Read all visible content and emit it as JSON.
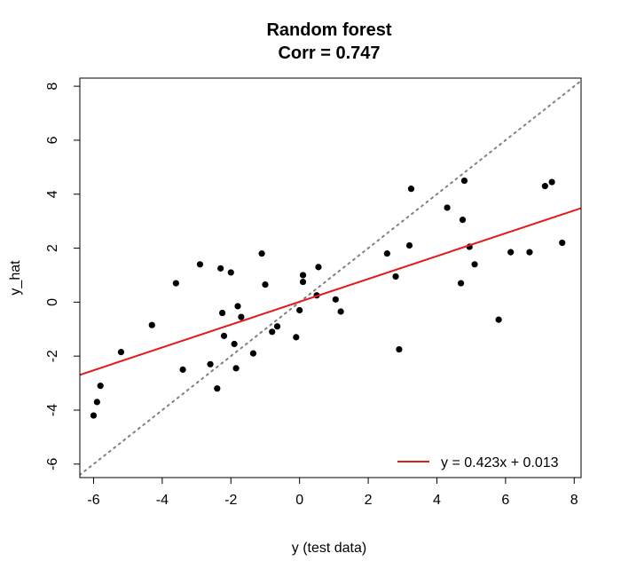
{
  "chart_data": {
    "type": "scatter",
    "title": "Random forest",
    "subtitle": "Corr = 0.747",
    "xlabel": "y (test data)",
    "ylabel": "y_hat",
    "xlim": [
      -6.4,
      8.2
    ],
    "ylim": [
      -6.5,
      8.3
    ],
    "xticks": [
      -6,
      -4,
      -2,
      0,
      2,
      4,
      6,
      8
    ],
    "yticks": [
      -6,
      -4,
      -2,
      0,
      2,
      4,
      6,
      8
    ],
    "xtick_labels": [
      "-6",
      "-4",
      "-2",
      "0",
      "2",
      "4",
      "6",
      "8"
    ],
    "ytick_labels": [
      "-6",
      "-4",
      "-2",
      "0",
      "2",
      "4",
      "6",
      "8"
    ],
    "grid": false,
    "legend_position": "bottom-right",
    "legend_label": "y = 0.423x + 0.013",
    "colors": {
      "points": "#000000",
      "fit_line": "#e31a1c",
      "identity_line": "#808080"
    },
    "fit_line": {
      "slope": 0.423,
      "intercept": 0.013
    },
    "identity_line": {
      "slope": 1,
      "intercept": 0
    },
    "points": [
      {
        "x": -6.0,
        "y": -4.2
      },
      {
        "x": -5.9,
        "y": -3.7
      },
      {
        "x": -5.8,
        "y": -3.1
      },
      {
        "x": -5.2,
        "y": -1.85
      },
      {
        "x": -4.3,
        "y": -0.85
      },
      {
        "x": -3.6,
        "y": 0.7
      },
      {
        "x": -3.4,
        "y": -2.5
      },
      {
        "x": -2.9,
        "y": 1.4
      },
      {
        "x": -2.6,
        "y": -2.3
      },
      {
        "x": -2.4,
        "y": -3.2
      },
      {
        "x": -2.3,
        "y": 1.25
      },
      {
        "x": -2.25,
        "y": -0.4
      },
      {
        "x": -2.2,
        "y": -1.25
      },
      {
        "x": -2.0,
        "y": 1.1
      },
      {
        "x": -1.9,
        "y": -1.55
      },
      {
        "x": -1.85,
        "y": -2.45
      },
      {
        "x": -1.8,
        "y": -0.15
      },
      {
        "x": -1.7,
        "y": -0.55
      },
      {
        "x": -1.35,
        "y": -1.9
      },
      {
        "x": -1.1,
        "y": 1.8
      },
      {
        "x": -1.0,
        "y": 0.65
      },
      {
        "x": -0.8,
        "y": -1.1
      },
      {
        "x": -0.65,
        "y": -0.9
      },
      {
        "x": -0.1,
        "y": -1.3
      },
      {
        "x": 0.0,
        "y": -0.3
      },
      {
        "x": 0.1,
        "y": 0.75
      },
      {
        "x": 0.1,
        "y": 1.0
      },
      {
        "x": 0.5,
        "y": 0.25
      },
      {
        "x": 0.55,
        "y": 1.3
      },
      {
        "x": 1.05,
        "y": 0.1
      },
      {
        "x": 1.2,
        "y": -0.35
      },
      {
        "x": 2.55,
        "y": 1.8
      },
      {
        "x": 2.8,
        "y": 0.95
      },
      {
        "x": 2.9,
        "y": -1.75
      },
      {
        "x": 3.2,
        "y": 2.1
      },
      {
        "x": 3.25,
        "y": 4.2
      },
      {
        "x": 4.3,
        "y": 3.5
      },
      {
        "x": 4.7,
        "y": 0.7
      },
      {
        "x": 4.75,
        "y": 3.05
      },
      {
        "x": 4.8,
        "y": 4.5
      },
      {
        "x": 4.95,
        "y": 2.05
      },
      {
        "x": 5.1,
        "y": 1.4
      },
      {
        "x": 5.8,
        "y": -0.65
      },
      {
        "x": 6.15,
        "y": 1.85
      },
      {
        "x": 6.7,
        "y": 1.85
      },
      {
        "x": 7.15,
        "y": 4.3
      },
      {
        "x": 7.35,
        "y": 4.45
      },
      {
        "x": 7.65,
        "y": 2.2
      }
    ]
  }
}
